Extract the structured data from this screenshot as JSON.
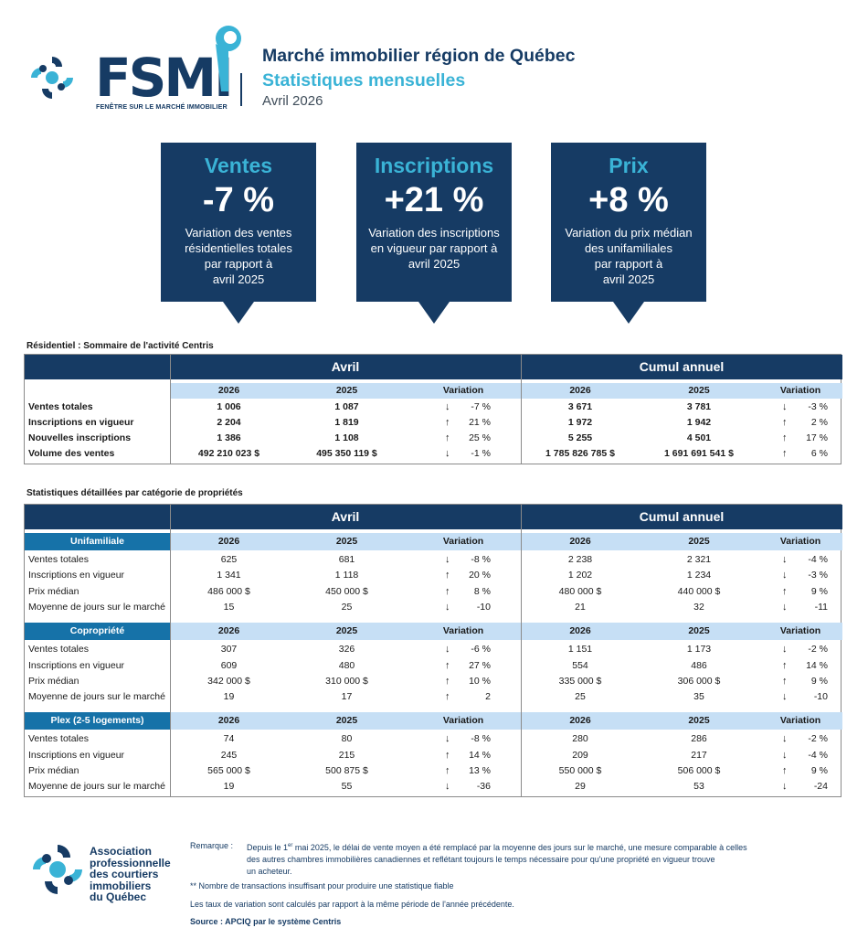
{
  "header": {
    "logo_word": "FSMI",
    "logo_tagline": "FENÊTRE SUR LE MARCHÉ IMMOBILIER",
    "title": "Marché immobilier région de Québec",
    "subtitle": "Statistiques mensuelles",
    "period": "Avril 2026"
  },
  "kpis": [
    {
      "label": "Ventes",
      "value": "-7 %",
      "desc_lines": [
        "Variation des ventes",
        "résidentielles totales",
        "par rapport à",
        "avril 2025"
      ]
    },
    {
      "label": "Inscriptions",
      "value": "+21 %",
      "desc_lines": [
        "Variation des inscriptions",
        "en vigueur par rapport à",
        "avril 2025"
      ]
    },
    {
      "label": "Prix",
      "value": "+8 %",
      "desc_lines": [
        "Variation du prix médian",
        "des unifamiliales",
        "par rapport à",
        "avril 2025"
      ]
    }
  ],
  "summary": {
    "title": "Résidentiel : Sommaire de l'activité Centris",
    "period_month": "Avril",
    "period_ytd": "Cumul annuel",
    "col_2026": "2026",
    "col_2025": "2025",
    "col_var": "Variation",
    "rows": [
      {
        "label": "Ventes totales",
        "m26": "1 006",
        "m25": "1 087",
        "mdir": "down",
        "mvar": "-7 %",
        "y26": "3 671",
        "y25": "3 781",
        "ydir": "down",
        "yvar": "-3 %"
      },
      {
        "label": "Inscriptions en vigueur",
        "m26": "2 204",
        "m25": "1 819",
        "mdir": "up",
        "mvar": "21 %",
        "y26": "1 972",
        "y25": "1 942",
        "ydir": "up",
        "yvar": "2 %"
      },
      {
        "label": "Nouvelles inscriptions",
        "m26": "1 386",
        "m25": "1 108",
        "mdir": "up",
        "mvar": "25 %",
        "y26": "5 255",
        "y25": "4 501",
        "ydir": "up",
        "yvar": "17 %"
      },
      {
        "label": "Volume des ventes",
        "m26": "492 210 023 $",
        "m25": "495 350 119 $",
        "mdir": "down",
        "mvar": "-1 %",
        "y26": "1 785 826 785 $",
        "y25": "1 691 691 541 $",
        "ydir": "up",
        "yvar": "6 %"
      }
    ]
  },
  "detail": {
    "title": "Statistiques détaillées par catégorie de propriétés",
    "period_month": "Avril",
    "period_ytd": "Cumul annuel",
    "col_2026": "2026",
    "col_2025": "2025",
    "col_var": "Variation",
    "categories": [
      {
        "name": "Unifamiliale",
        "rows": [
          {
            "label": "Ventes totales",
            "m26": "625",
            "m25": "681",
            "mdir": "down",
            "mvar": "-8 %",
            "y26": "2 238",
            "y25": "2 321",
            "ydir": "down",
            "yvar": "-4 %"
          },
          {
            "label": "Inscriptions en vigueur",
            "m26": "1 341",
            "m25": "1 118",
            "mdir": "up",
            "mvar": "20 %",
            "y26": "1 202",
            "y25": "1 234",
            "ydir": "down",
            "yvar": "-3 %"
          },
          {
            "label": "Prix médian",
            "m26": "486 000 $",
            "m25": "450 000 $",
            "mdir": "up",
            "mvar": "8 %",
            "y26": "480 000 $",
            "y25": "440 000 $",
            "ydir": "up",
            "yvar": "9 %"
          },
          {
            "label": "Moyenne de jours sur le marché",
            "m26": "15",
            "m25": "25",
            "mdir": "down",
            "mvar": "-10",
            "y26": "21",
            "y25": "32",
            "ydir": "down",
            "yvar": "-11"
          }
        ]
      },
      {
        "name": "Copropriété",
        "rows": [
          {
            "label": "Ventes totales",
            "m26": "307",
            "m25": "326",
            "mdir": "down",
            "mvar": "-6 %",
            "y26": "1 151",
            "y25": "1 173",
            "ydir": "down",
            "yvar": "-2 %"
          },
          {
            "label": "Inscriptions en vigueur",
            "m26": "609",
            "m25": "480",
            "mdir": "up",
            "mvar": "27 %",
            "y26": "554",
            "y25": "486",
            "ydir": "up",
            "yvar": "14 %"
          },
          {
            "label": "Prix médian",
            "m26": "342 000 $",
            "m25": "310 000 $",
            "mdir": "up",
            "mvar": "10 %",
            "y26": "335 000 $",
            "y25": "306 000 $",
            "ydir": "up",
            "yvar": "9 %"
          },
          {
            "label": "Moyenne de jours sur le marché",
            "m26": "19",
            "m25": "17",
            "mdir": "up",
            "mvar": "2",
            "y26": "25",
            "y25": "35",
            "ydir": "down",
            "yvar": "-10"
          }
        ]
      },
      {
        "name": "Plex (2-5 logements)",
        "rows": [
          {
            "label": "Ventes totales",
            "m26": "74",
            "m25": "80",
            "mdir": "down",
            "mvar": "-8 %",
            "y26": "280",
            "y25": "286",
            "ydir": "down",
            "yvar": "-2 %"
          },
          {
            "label": "Inscriptions en vigueur",
            "m26": "245",
            "m25": "215",
            "mdir": "up",
            "mvar": "14 %",
            "y26": "209",
            "y25": "217",
            "ydir": "down",
            "yvar": "-4 %"
          },
          {
            "label": "Prix médian",
            "m26": "565 000 $",
            "m25": "500 875 $",
            "mdir": "up",
            "mvar": "13 %",
            "y26": "550 000 $",
            "y25": "506 000 $",
            "ydir": "up",
            "yvar": "9 %"
          },
          {
            "label": "Moyenne de jours sur le marché",
            "m26": "19",
            "m25": "55",
            "mdir": "down",
            "mvar": "-36",
            "y26": "29",
            "y25": "53",
            "ydir": "down",
            "yvar": "-24"
          }
        ]
      }
    ]
  },
  "footer": {
    "org_lines": [
      "Association",
      "professionnelle",
      "des courtiers",
      "immobiliers",
      "du Québec"
    ],
    "remark_label": "Remarque :",
    "remark_lines": [
      "Depuis le 1er mai 2025, le délai de vente moyen a été remplacé par la moyenne des jours sur le marché, une mesure comparable à celles",
      "des autres chambres immobilières canadiennes et reflétant toujours le temps nécessaire pour qu'une propriété en vigueur trouve",
      "un acheteur."
    ],
    "note_insufficient": "** Nombre de transactions insuffisant pour produire une statistique fiable",
    "note_variation": "Les taux de variation sont calculés par rapport à la même période de l'année précédente.",
    "source": "Source : APCIQ par le système Centris"
  },
  "colors": {
    "navy": "#163b64",
    "cyan": "#3ab3d6",
    "blue": "#1672a8",
    "light": "#c6dff5"
  },
  "icons": {
    "up": "arrow-up-icon",
    "down": "arrow-down-icon"
  }
}
